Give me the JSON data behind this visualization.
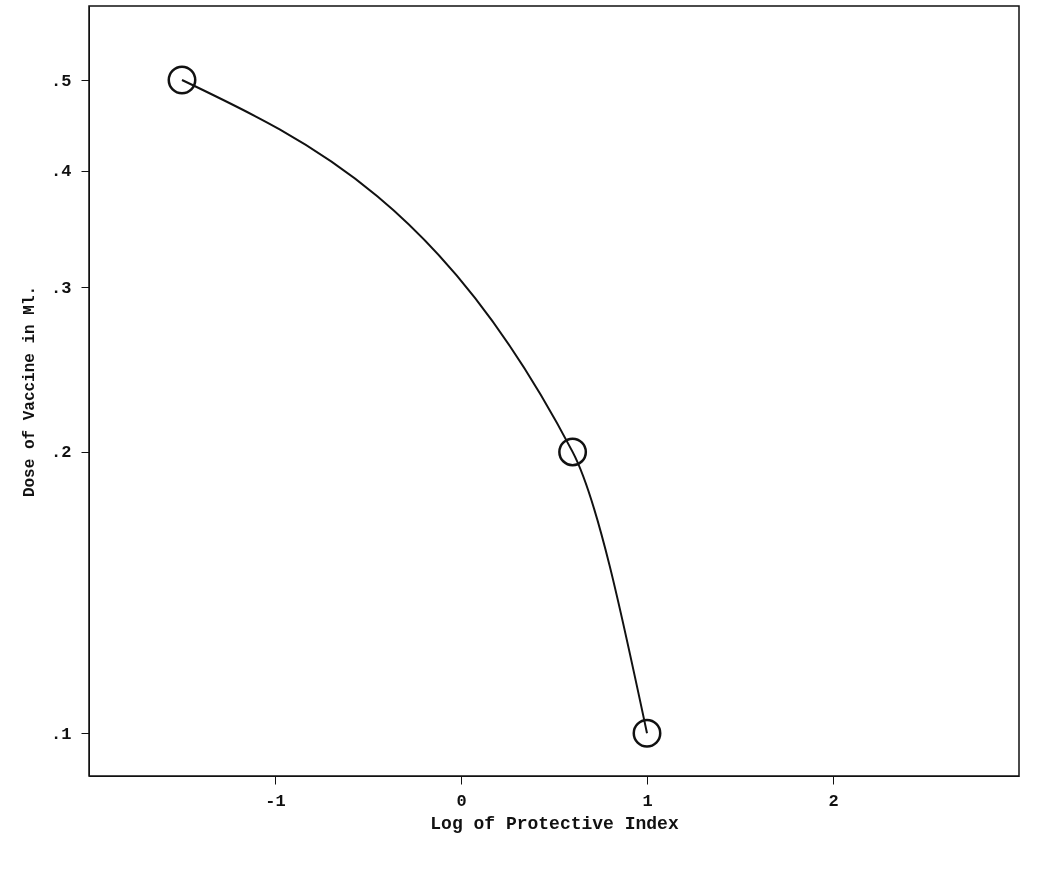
{
  "chart_data": {
    "type": "line",
    "xlabel": "Log of Protective Index",
    "ylabel": "Dose of Vaccine in Ml.",
    "series": [
      {
        "color": "#111111",
        "x": [
          -1.5,
          0.6,
          1.0
        ],
        "values": [
          0.5,
          0.2,
          0.1
        ]
      }
    ],
    "xlim": [
      -2,
      3
    ],
    "xticks": [
      -1,
      0,
      1,
      2
    ],
    "ylim": [
      0.09,
      0.6
    ],
    "yticks": [
      {
        "value": 0.1,
        "label": ".1"
      },
      {
        "value": 0.2,
        "label": ".2"
      },
      {
        "value": 0.3,
        "label": ".3"
      },
      {
        "value": 0.4,
        "label": ".4"
      },
      {
        "value": 0.5,
        "label": ".5"
      }
    ],
    "log": "y",
    "grid": false,
    "marker": "circle",
    "line_style": "solid"
  }
}
